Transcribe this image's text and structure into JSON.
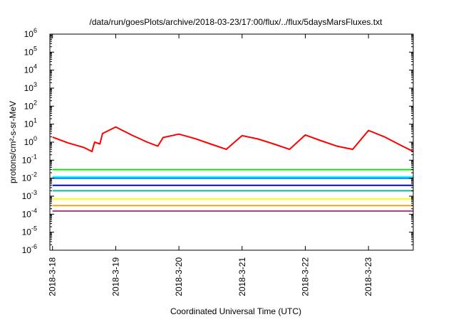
{
  "chart_data": {
    "type": "line",
    "title": "/data/run/goesPlots/archive/2018-03-23/17:00/flux/../flux/5daysMarsFluxes.txt",
    "xlabel": "Coordinated Universal Time (UTC)",
    "ylabel": "protons/cm²-s-sr-MeV",
    "x_type": "date",
    "xlim": [
      "2018-03-17 23:00",
      "2018-03-23 17:00"
    ],
    "yscale": "log",
    "ylim": [
      1e-06,
      1000000.0
    ],
    "grid": false,
    "legend": "none",
    "x_ticks": [
      "2018-3-18",
      "2018-3-19",
      "2018-3-20",
      "2018-3-21",
      "2018-3-22",
      "2018-3-23"
    ],
    "y_ticks": [
      {
        "base": "10",
        "exp": "-6"
      },
      {
        "base": "10",
        "exp": "-5"
      },
      {
        "base": "10",
        "exp": "-4"
      },
      {
        "base": "10",
        "exp": "-3"
      },
      {
        "base": "10",
        "exp": "-2"
      },
      {
        "base": "10",
        "exp": "-1"
      },
      {
        "base": "10",
        "exp": "0"
      },
      {
        "base": "10",
        "exp": "1"
      },
      {
        "base": "10",
        "exp": "2"
      },
      {
        "base": "10",
        "exp": "3"
      },
      {
        "base": "10",
        "exp": "4"
      },
      {
        "base": "10",
        "exp": "5"
      },
      {
        "base": "10",
        "exp": "6"
      }
    ],
    "series": [
      {
        "color": "#ff0000",
        "x": [
          "2018-03-18 00:00",
          "2018-03-18 06:00",
          "2018-03-18 12:00",
          "2018-03-18 15:00",
          "2018-03-18 16:00",
          "2018-03-18 18:00",
          "2018-03-18 19:00",
          "2018-03-19 00:00",
          "2018-03-19 06:00",
          "2018-03-19 12:00",
          "2018-03-19 16:00",
          "2018-03-19 18:00",
          "2018-03-20 00:00",
          "2018-03-20 06:00",
          "2018-03-20 12:00",
          "2018-03-20 18:00",
          "2018-03-21 00:00",
          "2018-03-21 06:00",
          "2018-03-21 12:00",
          "2018-03-21 18:00",
          "2018-03-22 00:00",
          "2018-03-22 06:00",
          "2018-03-22 12:00",
          "2018-03-22 18:00",
          "2018-03-23 00:00",
          "2018-03-23 06:00",
          "2018-03-23 12:00",
          "2018-03-23 17:00"
        ],
        "y": [
          1.9,
          0.9,
          0.5,
          0.3,
          1.0,
          0.8,
          3.0,
          7.0,
          2.5,
          1.0,
          0.6,
          1.8,
          2.8,
          1.6,
          0.8,
          0.4,
          2.3,
          1.5,
          0.8,
          0.4,
          2.5,
          1.2,
          0.6,
          0.4,
          4.5,
          2.0,
          0.7,
          0.3
        ]
      },
      {
        "color": "#00ee00",
        "x": [
          "2018-03-18 00:00",
          "2018-03-19 00:00",
          "2018-03-20 00:00",
          "2018-03-21 00:00",
          "2018-03-22 00:00",
          "2018-03-23 00:00",
          "2018-03-23 17:00"
        ],
        "y": [
          0.03,
          0.03,
          0.03,
          0.03,
          0.03,
          0.03,
          0.03
        ]
      },
      {
        "color": "#00ffff",
        "x": [
          "2018-03-18 00:00",
          "2018-03-19 00:00",
          "2018-03-20 00:00",
          "2018-03-21 00:00",
          "2018-03-22 00:00",
          "2018-03-23 00:00",
          "2018-03-23 17:00"
        ],
        "y": [
          0.012,
          0.012,
          0.012,
          0.012,
          0.012,
          0.012,
          0.012
        ]
      },
      {
        "color": "#0080ff",
        "x": [
          "2018-03-18 00:00",
          "2018-03-19 00:00",
          "2018-03-20 00:00",
          "2018-03-21 00:00",
          "2018-03-22 00:00",
          "2018-03-23 00:00",
          "2018-03-23 17:00"
        ],
        "y": [
          0.01,
          0.01,
          0.01,
          0.01,
          0.01,
          0.01,
          0.01
        ]
      },
      {
        "color": "#0000ff",
        "x": [
          "2018-03-18 00:00",
          "2018-03-19 00:00",
          "2018-03-20 00:00",
          "2018-03-21 00:00",
          "2018-03-22 00:00",
          "2018-03-23 00:00",
          "2018-03-23 17:00"
        ],
        "y": [
          0.004,
          0.004,
          0.004,
          0.004,
          0.004,
          0.004,
          0.004
        ]
      },
      {
        "color": "#00c0a0",
        "x": [
          "2018-03-18 00:00",
          "2018-03-19 00:00",
          "2018-03-20 00:00",
          "2018-03-21 00:00",
          "2018-03-22 00:00",
          "2018-03-23 00:00",
          "2018-03-23 17:00"
        ],
        "y": [
          0.002,
          0.002,
          0.002,
          0.002,
          0.002,
          0.002,
          0.002
        ]
      },
      {
        "color": "#ffff00",
        "x": [
          "2018-03-18 00:00",
          "2018-03-19 00:00",
          "2018-03-20 00:00",
          "2018-03-21 00:00",
          "2018-03-22 00:00",
          "2018-03-23 00:00",
          "2018-03-23 17:00"
        ],
        "y": [
          0.0007,
          0.0007,
          0.0007,
          0.0007,
          0.0007,
          0.0007,
          0.0007
        ]
      },
      {
        "color": "#ffa000",
        "x": [
          "2018-03-18 00:00",
          "2018-03-19 00:00",
          "2018-03-20 00:00",
          "2018-03-21 00:00",
          "2018-03-22 00:00",
          "2018-03-23 00:00",
          "2018-03-23 17:00"
        ],
        "y": [
          0.0003,
          0.0003,
          0.0003,
          0.0003,
          0.0003,
          0.0003,
          0.0003
        ]
      },
      {
        "color": "#a0407a",
        "x": [
          "2018-03-18 00:00",
          "2018-03-19 00:00",
          "2018-03-20 00:00",
          "2018-03-21 00:00",
          "2018-03-22 00:00",
          "2018-03-23 00:00",
          "2018-03-23 17:00"
        ],
        "y": [
          0.00015,
          0.00015,
          0.00015,
          0.00015,
          0.00015,
          0.00015,
          0.00015
        ]
      }
    ]
  }
}
